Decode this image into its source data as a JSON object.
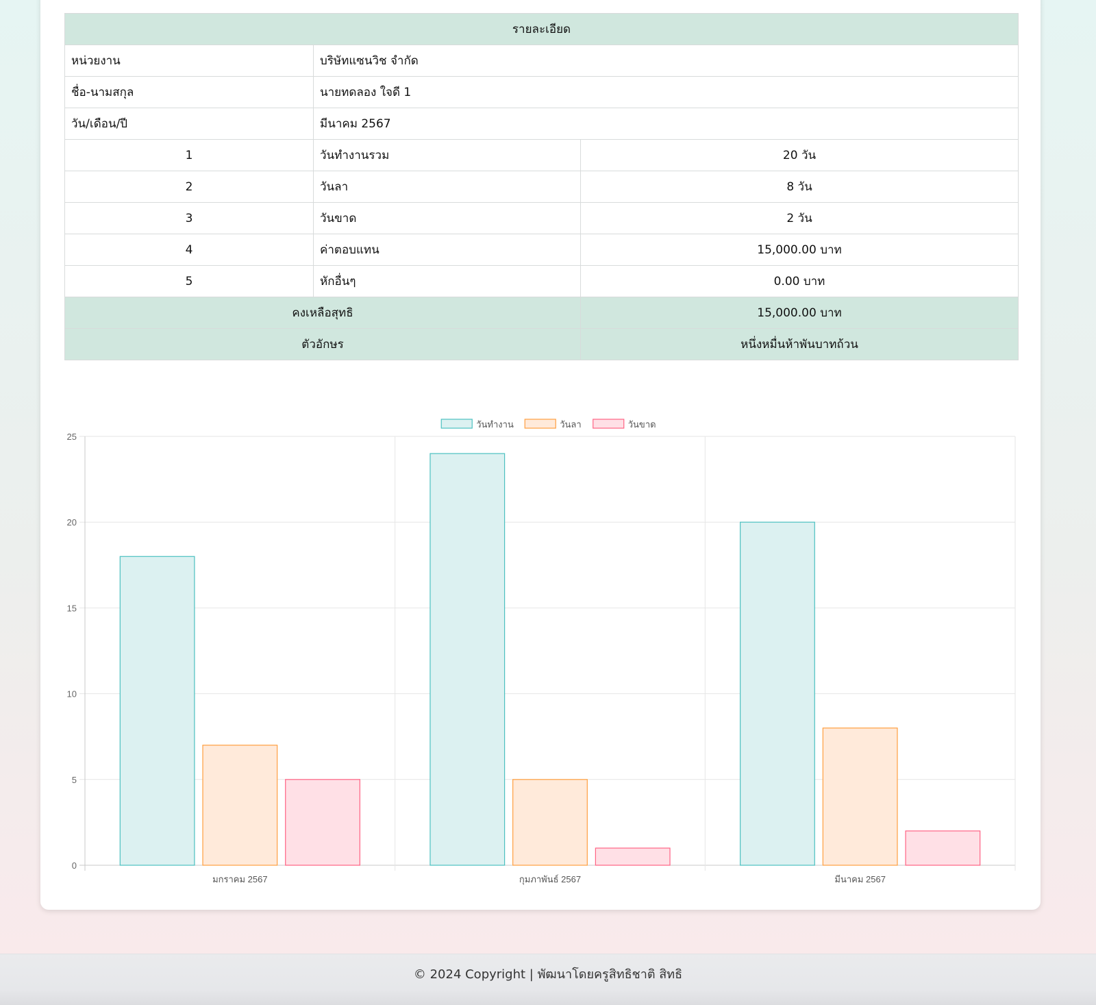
{
  "details": {
    "title": "รายละเอียด",
    "rows": [
      {
        "label": "หน่วยงาน",
        "value": "บริษัทแซนวิช จำกัด"
      },
      {
        "label": "ชื่อ-นามสกุล",
        "value": "นายทดลอง ใจดี 1"
      },
      {
        "label": "วัน/เดือน/ปี",
        "value": "มีนาคม 2567"
      }
    ],
    "items": [
      {
        "no": "1",
        "label": "วันทำงานรวม",
        "value": "20 วัน"
      },
      {
        "no": "2",
        "label": "วันลา",
        "value": "8 วัน"
      },
      {
        "no": "3",
        "label": "วันขาด",
        "value": "2 วัน"
      },
      {
        "no": "4",
        "label": "ค่าตอบแทน",
        "value": "15,000.00 บาท"
      },
      {
        "no": "5",
        "label": "หักอื่นๆ",
        "value": "0.00 บาท"
      }
    ],
    "net_label": "คงเหลือสุทธิ",
    "net_value": "15,000.00 บาท",
    "words_label": "ตัวอักษร",
    "words_value": "หนึ่งหมื่นห้าพันบาทถ้วน"
  },
  "chart_data": {
    "type": "bar",
    "categories": [
      "มกราคม 2567",
      "กุมภาพันธ์ 2567",
      "มีนาคม 2567"
    ],
    "series": [
      {
        "name": "วันทำงาน",
        "values": [
          18,
          24,
          20
        ],
        "fill": "#dcf1f1",
        "stroke": "#4bc0c0"
      },
      {
        "name": "วันลา",
        "values": [
          7,
          5,
          8
        ],
        "fill": "#ffeada",
        "stroke": "#ff9f40"
      },
      {
        "name": "วันขาด",
        "values": [
          5,
          1,
          2
        ],
        "fill": "#ffe0e6",
        "stroke": "#ff6384"
      }
    ],
    "ylim": [
      0,
      25
    ],
    "yticks": [
      "0",
      "5",
      "10",
      "15",
      "20",
      "25"
    ],
    "grid": true,
    "legend": "top-center"
  },
  "footer": {
    "text": "© 2024 Copyright | พัฒนาโดยครูสิทธิชาติ สิทธิ"
  }
}
